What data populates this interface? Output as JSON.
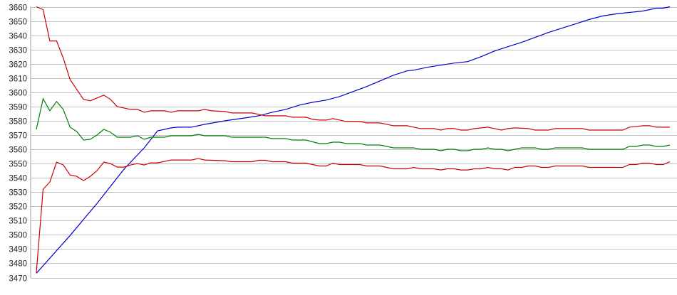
{
  "chart_data": {
    "type": "line",
    "title": "",
    "xlabel": "",
    "ylabel": "",
    "ylim": [
      3470,
      3660
    ],
    "xlim": [
      0,
      94
    ],
    "y_ticks": [
      "3660",
      "3650",
      "3640",
      "3630",
      "3620",
      "3610",
      "3600",
      "3590",
      "3580",
      "3570",
      "3560",
      "3550",
      "3540",
      "3530",
      "3520",
      "3510",
      "3500",
      "3490",
      "3480",
      "3470"
    ],
    "grid": true,
    "legend": "none",
    "series": [
      {
        "color": "#0000cc",
        "points": [
          [
            0,
            3473
          ],
          [
            5,
            3499.5
          ],
          [
            9,
            3522
          ],
          [
            13,
            3546
          ],
          [
            16,
            3561
          ],
          [
            17,
            3567
          ],
          [
            18,
            3573
          ],
          [
            19,
            3574
          ],
          [
            20,
            3575
          ],
          [
            21,
            3575.5
          ],
          [
            23,
            3575.5
          ],
          [
            25,
            3577.5
          ],
          [
            28,
            3580
          ],
          [
            31,
            3582
          ],
          [
            33,
            3583.5
          ],
          [
            35,
            3586
          ],
          [
            37,
            3588
          ],
          [
            39,
            3591
          ],
          [
            41,
            3593
          ],
          [
            43,
            3594.5
          ],
          [
            45,
            3597
          ],
          [
            47,
            3600.5
          ],
          [
            49,
            3604
          ],
          [
            51,
            3608
          ],
          [
            53,
            3612
          ],
          [
            55,
            3615
          ],
          [
            56,
            3615.5
          ],
          [
            58,
            3617.5
          ],
          [
            60,
            3619
          ],
          [
            62,
            3620.5
          ],
          [
            64,
            3621.5
          ],
          [
            66,
            3625
          ],
          [
            68,
            3629
          ],
          [
            70,
            3632
          ],
          [
            72,
            3635
          ],
          [
            74,
            3638.5
          ],
          [
            76,
            3642
          ],
          [
            78,
            3645
          ],
          [
            80,
            3648
          ],
          [
            82,
            3651
          ],
          [
            84,
            3653.5
          ],
          [
            86,
            3655
          ],
          [
            88,
            3656
          ],
          [
            90,
            3657
          ],
          [
            92,
            3659
          ],
          [
            93,
            3659
          ],
          [
            94,
            3660
          ]
        ]
      },
      {
        "color": "#cc0000",
        "points": [
          [
            0,
            3660
          ],
          [
            1,
            3658
          ],
          [
            2,
            3636
          ],
          [
            3,
            3636
          ],
          [
            4,
            3624
          ],
          [
            5,
            3609
          ],
          [
            6,
            3602
          ],
          [
            7,
            3595
          ],
          [
            8,
            3594
          ],
          [
            10,
            3598
          ],
          [
            11,
            3595
          ],
          [
            12,
            3590
          ],
          [
            13,
            3589
          ],
          [
            14,
            3588
          ],
          [
            15,
            3588
          ],
          [
            16,
            3586
          ],
          [
            17,
            3587
          ],
          [
            19,
            3587
          ],
          [
            20,
            3586
          ],
          [
            21,
            3587
          ],
          [
            24,
            3587
          ],
          [
            25,
            3588
          ],
          [
            26,
            3587
          ],
          [
            28,
            3586.5
          ],
          [
            29,
            3585.5
          ],
          [
            32,
            3585.5
          ],
          [
            33,
            3584.5
          ],
          [
            34,
            3583.5
          ],
          [
            37,
            3583.5
          ],
          [
            38,
            3582.5
          ],
          [
            40,
            3582.5
          ],
          [
            41,
            3581
          ],
          [
            42,
            3580.5
          ],
          [
            43,
            3580.5
          ],
          [
            44,
            3581.5
          ],
          [
            45,
            3580.5
          ],
          [
            46,
            3579.5
          ],
          [
            48,
            3579.5
          ],
          [
            49,
            3578.5
          ],
          [
            51,
            3578.5
          ],
          [
            52,
            3577.5
          ],
          [
            53,
            3576.5
          ],
          [
            55,
            3576.5
          ],
          [
            56,
            3575.5
          ],
          [
            57,
            3574.5
          ],
          [
            59,
            3574.5
          ],
          [
            60,
            3573.5
          ],
          [
            61,
            3574.5
          ],
          [
            62,
            3574.5
          ],
          [
            63,
            3573.5
          ],
          [
            64,
            3573.5
          ],
          [
            65,
            3574.5
          ],
          [
            67,
            3575.5
          ],
          [
            68,
            3574.5
          ],
          [
            69,
            3573.5
          ],
          [
            70,
            3574.5
          ],
          [
            71,
            3575
          ],
          [
            73,
            3574.5
          ],
          [
            74,
            3573.5
          ],
          [
            76,
            3573.5
          ],
          [
            77,
            3574.5
          ],
          [
            81,
            3574.5
          ],
          [
            82,
            3573.5
          ],
          [
            87,
            3573.5
          ],
          [
            88,
            3575.5
          ],
          [
            90,
            3576.5
          ],
          [
            91,
            3576.5
          ],
          [
            92,
            3575.5
          ],
          [
            94,
            3575.5
          ]
        ]
      },
      {
        "color": "#008000",
        "points": [
          [
            0,
            3574
          ],
          [
            1,
            3595.5
          ],
          [
            2,
            3587
          ],
          [
            3,
            3593.5
          ],
          [
            4,
            3588
          ],
          [
            5,
            3575.5
          ],
          [
            6,
            3572.5
          ],
          [
            7,
            3566.5
          ],
          [
            8,
            3567
          ],
          [
            9,
            3570
          ],
          [
            10,
            3574
          ],
          [
            11,
            3572
          ],
          [
            12,
            3568.5
          ],
          [
            14,
            3568.5
          ],
          [
            15,
            3569.5
          ],
          [
            16,
            3567
          ],
          [
            17,
            3568.5
          ],
          [
            19,
            3568.5
          ],
          [
            20,
            3569.5
          ],
          [
            23,
            3569.5
          ],
          [
            24,
            3570.5
          ],
          [
            25,
            3569.5
          ],
          [
            28,
            3569.5
          ],
          [
            29,
            3568.5
          ],
          [
            34,
            3568.5
          ],
          [
            35,
            3567.5
          ],
          [
            37,
            3567.5
          ],
          [
            38,
            3566.5
          ],
          [
            40,
            3566.5
          ],
          [
            42,
            3564
          ],
          [
            43,
            3564
          ],
          [
            44,
            3565
          ],
          [
            45,
            3565
          ],
          [
            46,
            3564
          ],
          [
            48,
            3564
          ],
          [
            49,
            3563
          ],
          [
            51,
            3563
          ],
          [
            52,
            3562
          ],
          [
            53,
            3561
          ],
          [
            56,
            3561
          ],
          [
            57,
            3560
          ],
          [
            59,
            3560
          ],
          [
            60,
            3559
          ],
          [
            61,
            3560
          ],
          [
            62,
            3560
          ],
          [
            63,
            3559
          ],
          [
            64,
            3559
          ],
          [
            65,
            3560
          ],
          [
            66,
            3560
          ],
          [
            67,
            3561
          ],
          [
            68,
            3560
          ],
          [
            69,
            3560
          ],
          [
            70,
            3559
          ],
          [
            71,
            3560
          ],
          [
            72,
            3561
          ],
          [
            74,
            3561
          ],
          [
            75,
            3560
          ],
          [
            76,
            3560
          ],
          [
            77,
            3561
          ],
          [
            81,
            3561
          ],
          [
            82,
            3560
          ],
          [
            87,
            3560
          ],
          [
            88,
            3562
          ],
          [
            89,
            3562
          ],
          [
            90,
            3563
          ],
          [
            91,
            3563
          ],
          [
            92,
            3562
          ],
          [
            93,
            3562
          ],
          [
            94,
            3563
          ]
        ]
      },
      {
        "color": "#cc0000",
        "points": [
          [
            0,
            3473.5
          ],
          [
            1,
            3532
          ],
          [
            2,
            3537
          ],
          [
            3,
            3551
          ],
          [
            4,
            3549
          ],
          [
            5,
            3542
          ],
          [
            6,
            3541
          ],
          [
            7,
            3538
          ],
          [
            8,
            3541
          ],
          [
            9,
            3545
          ],
          [
            10,
            3551
          ],
          [
            11,
            3550
          ],
          [
            12,
            3547.5
          ],
          [
            13,
            3547.5
          ],
          [
            14,
            3549
          ],
          [
            15,
            3550
          ],
          [
            16,
            3549
          ],
          [
            17,
            3550.5
          ],
          [
            18,
            3550.5
          ],
          [
            20,
            3552.5
          ],
          [
            23,
            3552.5
          ],
          [
            24,
            3553.5
          ],
          [
            25,
            3552.5
          ],
          [
            28,
            3552
          ],
          [
            29,
            3551.3
          ],
          [
            32,
            3551.3
          ],
          [
            33,
            3552.3
          ],
          [
            34,
            3552.3
          ],
          [
            35,
            3551.3
          ],
          [
            37,
            3551.3
          ],
          [
            38,
            3550.3
          ],
          [
            40,
            3550.3
          ],
          [
            42,
            3548.3
          ],
          [
            43,
            3548.3
          ],
          [
            44,
            3550.3
          ],
          [
            45,
            3549.3
          ],
          [
            48,
            3549.3
          ],
          [
            49,
            3548.3
          ],
          [
            51,
            3548.3
          ],
          [
            52,
            3547.3
          ],
          [
            53,
            3546.3
          ],
          [
            55,
            3546.3
          ],
          [
            56,
            3547.3
          ],
          [
            57,
            3546.3
          ],
          [
            59,
            3546.3
          ],
          [
            60,
            3545.5
          ],
          [
            61,
            3546.3
          ],
          [
            62,
            3546.3
          ],
          [
            63,
            3545.5
          ],
          [
            64,
            3545.5
          ],
          [
            65,
            3546.3
          ],
          [
            66,
            3546.3
          ],
          [
            67,
            3547.3
          ],
          [
            68,
            3546.3
          ],
          [
            69,
            3546.3
          ],
          [
            70,
            3545.5
          ],
          [
            71,
            3547.3
          ],
          [
            72,
            3547.3
          ],
          [
            73,
            3548.3
          ],
          [
            74,
            3548.3
          ],
          [
            75,
            3547.3
          ],
          [
            76,
            3547.3
          ],
          [
            77,
            3548.3
          ],
          [
            81,
            3548.3
          ],
          [
            82,
            3547.3
          ],
          [
            87,
            3547.3
          ],
          [
            88,
            3549.3
          ],
          [
            89,
            3549.3
          ],
          [
            90,
            3550.3
          ],
          [
            91,
            3550.3
          ],
          [
            92,
            3549.3
          ],
          [
            93,
            3549.3
          ],
          [
            94,
            3551.3
          ]
        ]
      }
    ]
  }
}
